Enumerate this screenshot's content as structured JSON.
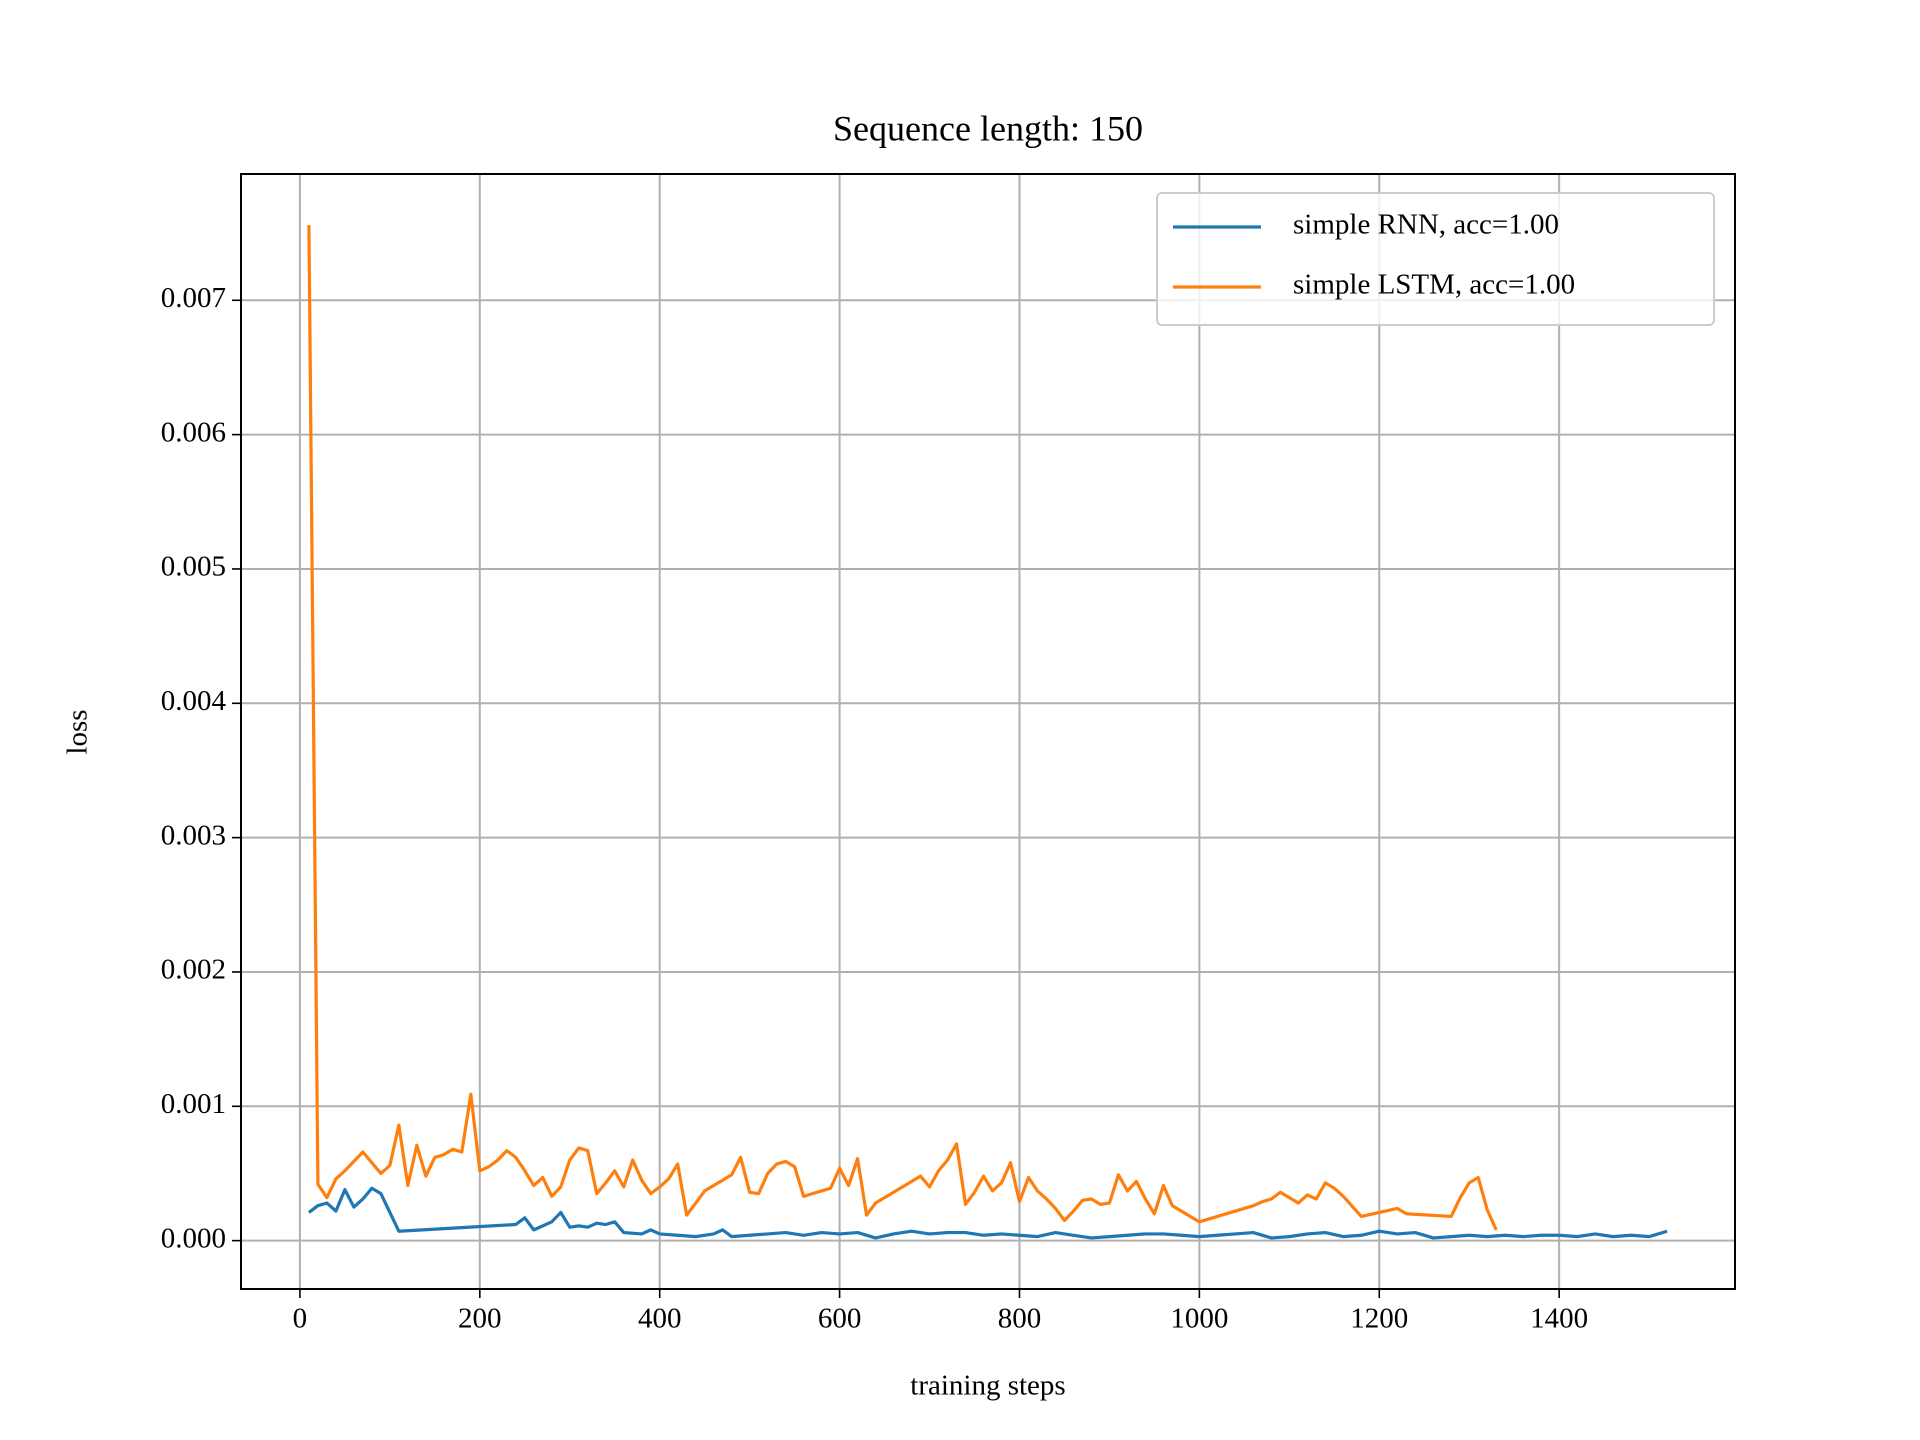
{
  "chart_data": {
    "type": "line",
    "title": "Sequence length: 150",
    "x_label": "training steps",
    "y_label": "loss",
    "xlim": [
      -65.5,
      1595.5
    ],
    "ylim": [
      -0.00036,
      0.00794
    ],
    "xticks": [
      0,
      200,
      400,
      600,
      800,
      1000,
      1200,
      1400
    ],
    "yticks": [
      {
        "value": 0,
        "label": "0.000"
      },
      0.001,
      0.002,
      0.003,
      0.004,
      0.005,
      0.006,
      0.007
    ],
    "grid": true,
    "legend": "upper right",
    "series": [
      {
        "name": "simple RNN, acc=1.00",
        "color": "#1f77b4",
        "x": [
          10,
          20,
          30,
          40,
          50,
          60,
          70,
          80,
          90,
          110,
          240,
          250,
          260,
          270,
          280,
          290,
          300,
          310,
          320,
          330,
          340,
          350,
          360,
          380,
          390,
          400,
          420,
          440,
          460,
          470,
          480,
          500,
          520,
          540,
          560,
          580,
          600,
          620,
          640,
          660,
          680,
          700,
          720,
          740,
          760,
          780,
          800,
          820,
          840,
          860,
          880,
          900,
          920,
          940,
          960,
          980,
          1000,
          1020,
          1040,
          1060,
          1080,
          1100,
          1120,
          1140,
          1160,
          1180,
          1200,
          1220,
          1240,
          1260,
          1280,
          1300,
          1320,
          1340,
          1360,
          1380,
          1400,
          1420,
          1440,
          1460,
          1480,
          1500,
          1520
        ],
        "values": [
          0.00021,
          0.00026,
          0.00028,
          0.00022,
          0.00038,
          0.00025,
          0.00031,
          0.00039,
          0.00035,
          7e-05,
          0.00012,
          0.00017,
          8e-05,
          0.00011,
          0.00014,
          0.00021,
          0.0001,
          0.00011,
          0.0001,
          0.00013,
          0.00012,
          0.00014,
          6e-05,
          5e-05,
          8e-05,
          5e-05,
          4e-05,
          3e-05,
          5e-05,
          8e-05,
          3e-05,
          4e-05,
          5e-05,
          6e-05,
          4e-05,
          6e-05,
          5e-05,
          6e-05,
          2e-05,
          5e-05,
          7e-05,
          5e-05,
          6e-05,
          6e-05,
          4e-05,
          5e-05,
          4e-05,
          3e-05,
          6e-05,
          4e-05,
          2e-05,
          3e-05,
          4e-05,
          5e-05,
          5e-05,
          4e-05,
          3e-05,
          4e-05,
          5e-05,
          6e-05,
          2e-05,
          3e-05,
          5e-05,
          6e-05,
          3e-05,
          4e-05,
          7e-05,
          5e-05,
          6e-05,
          2e-05,
          3e-05,
          4e-05,
          3e-05,
          4e-05,
          3e-05,
          4e-05,
          4e-05,
          3e-05,
          5e-05,
          3e-05,
          4e-05,
          3e-05,
          7e-05
        ]
      },
      {
        "name": "simple LSTM, acc=1.00",
        "color": "#ff7f0e",
        "x": [
          10,
          20,
          30,
          40,
          50,
          60,
          70,
          80,
          90,
          100,
          110,
          120,
          130,
          140,
          150,
          160,
          170,
          180,
          190,
          200,
          210,
          220,
          230,
          240,
          250,
          260,
          270,
          280,
          290,
          300,
          310,
          320,
          330,
          340,
          350,
          360,
          370,
          380,
          390,
          400,
          410,
          420,
          430,
          440,
          450,
          460,
          470,
          480,
          490,
          500,
          510,
          520,
          530,
          540,
          550,
          560,
          570,
          580,
          590,
          600,
          610,
          620,
          630,
          640,
          650,
          660,
          670,
          680,
          690,
          700,
          710,
          720,
          730,
          740,
          750,
          760,
          770,
          780,
          790,
          800,
          810,
          820,
          830,
          840,
          850,
          860,
          870,
          880,
          890,
          900,
          910,
          920,
          930,
          940,
          950,
          960,
          970,
          1000,
          1060,
          1070,
          1080,
          1090,
          1100,
          1110,
          1120,
          1130,
          1140,
          1150,
          1160,
          1180,
          1220,
          1230,
          1280,
          1290,
          1300,
          1310,
          1320,
          1330
        ],
        "values": [
          0.00756,
          0.00042,
          0.00032,
          0.00046,
          0.00052,
          0.00059,
          0.00066,
          0.00058,
          0.0005,
          0.00056,
          0.00086,
          0.00041,
          0.00071,
          0.00048,
          0.00062,
          0.00064,
          0.00068,
          0.00066,
          0.00109,
          0.00052,
          0.00055,
          0.0006,
          0.00067,
          0.00062,
          0.00052,
          0.00041,
          0.00047,
          0.00033,
          0.0004,
          0.0006,
          0.00069,
          0.00067,
          0.00035,
          0.00043,
          0.00052,
          0.0004,
          0.0006,
          0.00045,
          0.00035,
          0.0004,
          0.00046,
          0.00057,
          0.00019,
          0.00028,
          0.00037,
          0.00041,
          0.00045,
          0.00049,
          0.00062,
          0.00036,
          0.00035,
          0.0005,
          0.00057,
          0.00059,
          0.00055,
          0.00033,
          0.00035,
          0.00037,
          0.00039,
          0.00054,
          0.00041,
          0.00061,
          0.00019,
          0.00028,
          0.00032,
          0.00036,
          0.0004,
          0.00044,
          0.00048,
          0.0004,
          0.00052,
          0.0006,
          0.00072,
          0.00027,
          0.00036,
          0.00048,
          0.00037,
          0.00043,
          0.00058,
          0.00029,
          0.00047,
          0.00037,
          0.00031,
          0.00024,
          0.00015,
          0.00022,
          0.0003,
          0.00031,
          0.00027,
          0.00028,
          0.00049,
          0.00037,
          0.00044,
          0.00031,
          0.0002,
          0.00041,
          0.00026,
          0.00014,
          0.00026,
          0.00029,
          0.00031,
          0.00036,
          0.00032,
          0.00028,
          0.00034,
          0.00031,
          0.00043,
          0.00039,
          0.00033,
          0.00018,
          0.00024,
          0.0002,
          0.00018,
          0.00032,
          0.00043,
          0.00047,
          0.00023,
          8e-05
        ]
      }
    ]
  }
}
